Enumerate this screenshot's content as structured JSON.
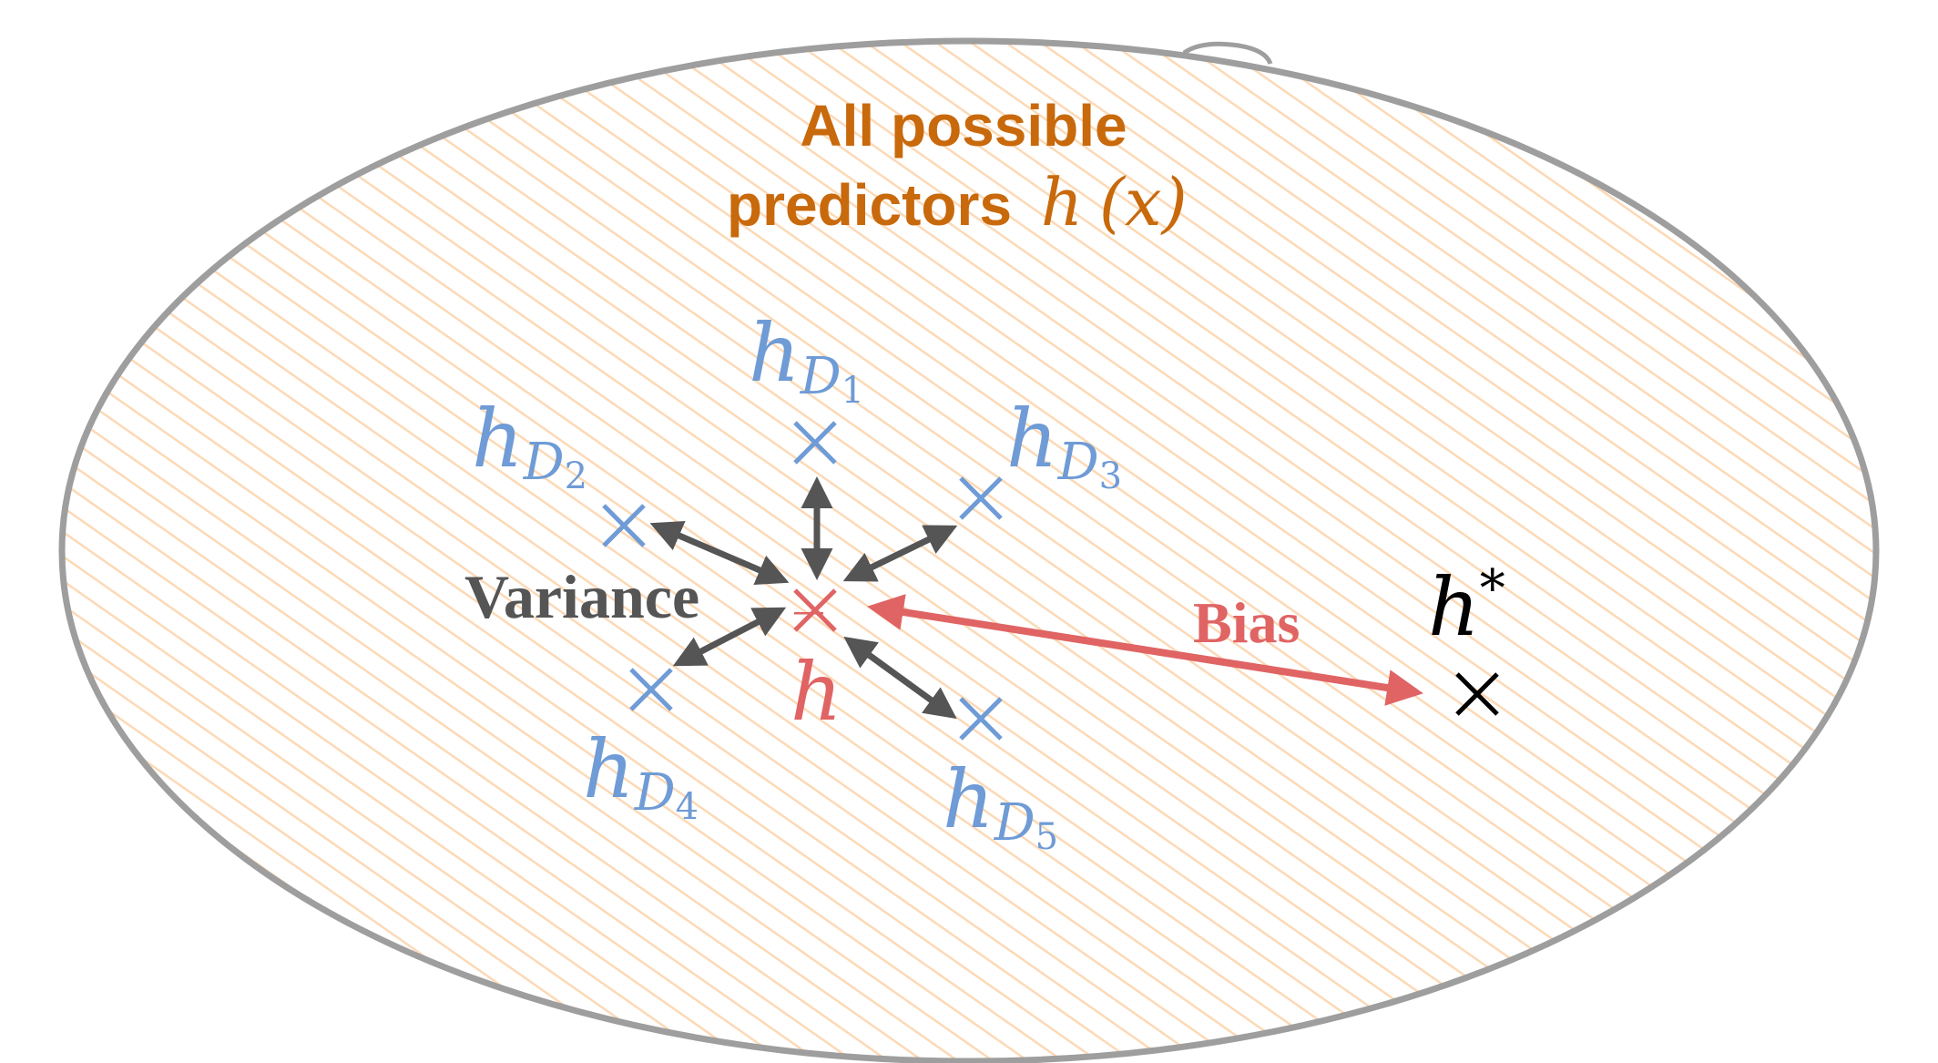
{
  "title": {
    "line1": "All possible",
    "line2_text": "predictors",
    "line2_math_h": "h",
    "line2_math_paren": "(x)"
  },
  "labels": {
    "variance": "Variance",
    "bias": "Bias"
  },
  "predictors": [
    {
      "base": "h",
      "sub": "D",
      "index": "1"
    },
    {
      "base": "h",
      "sub": "D",
      "index": "2"
    },
    {
      "base": "h",
      "sub": "D",
      "index": "3"
    },
    {
      "base": "h",
      "sub": "D",
      "index": "4"
    },
    {
      "base": "h",
      "sub": "D",
      "index": "5"
    }
  ],
  "mean_predictor": {
    "base": "h",
    "bar": "‾"
  },
  "target": {
    "base": "h",
    "sup": "*"
  },
  "colors": {
    "ellipse_stroke": "#9e9e9e",
    "hatch": "#fcd9b6",
    "title": "#c8690c",
    "predictor": "#6f9bd6",
    "mean": "#e06464",
    "arrow": "#555555",
    "bias": "#e06464",
    "target": "#000000"
  }
}
